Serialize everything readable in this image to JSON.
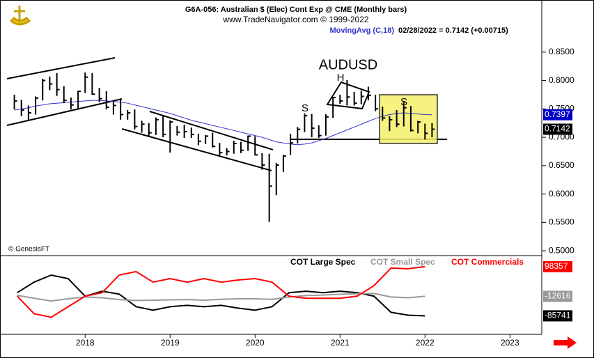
{
  "chart_data": [
    {
      "type": "ohlc",
      "title": "G6A-056:  Australian $ (Elec) Cont Exp @ CME  (Monthly bars)",
      "subtitle": "www.TradeNavigator.com © 1999-2022",
      "study_label": "MovingAvg (C,18)",
      "last_quote": "02/28/2022 = 0.7142 (+0.00715)",
      "annotations": [
        "AUDUSD",
        "H",
        "S",
        "S"
      ],
      "credit": "© GenesisFT",
      "color": "#000000",
      "x": [
        2017.167,
        2017.25,
        2017.333,
        2017.417,
        2017.5,
        2017.583,
        2017.667,
        2017.75,
        2017.833,
        2017.917,
        2018.0,
        2018.083,
        2018.167,
        2018.25,
        2018.333,
        2018.417,
        2018.5,
        2018.583,
        2018.667,
        2018.75,
        2018.833,
        2018.917,
        2019.0,
        2019.083,
        2019.167,
        2019.25,
        2019.333,
        2019.417,
        2019.5,
        2019.583,
        2019.667,
        2019.75,
        2019.833,
        2019.917,
        2020.0,
        2020.083,
        2020.167,
        2020.25,
        2020.333,
        2020.417,
        2020.5,
        2020.583,
        2020.667,
        2020.75,
        2020.833,
        2020.917,
        2021.0,
        2021.083,
        2021.167,
        2021.25,
        2021.333,
        2021.417,
        2021.5,
        2021.583,
        2021.667,
        2021.75,
        2021.833,
        2021.917,
        2022.0,
        2022.083
      ],
      "high": [
        0.775,
        0.766,
        0.756,
        0.772,
        0.803,
        0.807,
        0.813,
        0.79,
        0.77,
        0.782,
        0.814,
        0.813,
        0.787,
        0.781,
        0.762,
        0.768,
        0.748,
        0.749,
        0.729,
        0.725,
        0.735,
        0.737,
        0.73,
        0.72,
        0.722,
        0.717,
        0.706,
        0.704,
        0.708,
        0.69,
        0.681,
        0.694,
        0.692,
        0.703,
        0.702,
        0.672,
        0.671,
        0.655,
        0.669,
        0.706,
        0.718,
        0.742,
        0.741,
        0.721,
        0.741,
        0.771,
        0.775,
        0.801,
        0.78,
        0.782,
        0.789,
        0.775,
        0.754,
        0.737,
        0.748,
        0.764,
        0.755,
        0.729,
        0.724,
        0.725
      ],
      "low": [
        0.749,
        0.737,
        0.731,
        0.74,
        0.765,
        0.783,
        0.773,
        0.76,
        0.749,
        0.75,
        0.778,
        0.775,
        0.762,
        0.749,
        0.74,
        0.731,
        0.731,
        0.714,
        0.708,
        0.702,
        0.704,
        0.7,
        0.673,
        0.703,
        0.699,
        0.699,
        0.686,
        0.688,
        0.682,
        0.668,
        0.668,
        0.671,
        0.672,
        0.676,
        0.668,
        0.643,
        0.551,
        0.598,
        0.639,
        0.669,
        0.689,
        0.709,
        0.7,
        0.699,
        0.703,
        0.734,
        0.759,
        0.756,
        0.756,
        0.758,
        0.765,
        0.746,
        0.729,
        0.711,
        0.718,
        0.719,
        0.71,
        0.707,
        0.696,
        0.7
      ],
      "close": [
        0.764,
        0.748,
        0.743,
        0.769,
        0.8,
        0.794,
        0.784,
        0.765,
        0.757,
        0.781,
        0.806,
        0.776,
        0.768,
        0.753,
        0.756,
        0.74,
        0.743,
        0.719,
        0.723,
        0.708,
        0.731,
        0.705,
        0.727,
        0.709,
        0.71,
        0.705,
        0.693,
        0.702,
        0.684,
        0.673,
        0.675,
        0.689,
        0.677,
        0.702,
        0.669,
        0.651,
        0.614,
        0.651,
        0.667,
        0.69,
        0.714,
        0.738,
        0.716,
        0.703,
        0.736,
        0.77,
        0.764,
        0.771,
        0.76,
        0.772,
        0.774,
        0.75,
        0.734,
        0.731,
        0.723,
        0.752,
        0.712,
        0.727,
        0.707,
        0.7142
      ],
      "moving_average": {
        "color": "#3333cc",
        "values": [
          0.748,
          0.75,
          0.752,
          0.755,
          0.757,
          0.759,
          0.76,
          0.761,
          0.762,
          0.763,
          0.764,
          0.765,
          0.765,
          0.764,
          0.763,
          0.762,
          0.76,
          0.757,
          0.754,
          0.751,
          0.748,
          0.745,
          0.742,
          0.738,
          0.734,
          0.73,
          0.727,
          0.724,
          0.721,
          0.718,
          0.715,
          0.712,
          0.709,
          0.706,
          0.703,
          0.7,
          0.696,
          0.692,
          0.69,
          0.688,
          0.687,
          0.688,
          0.69,
          0.694,
          0.698,
          0.703,
          0.708,
          0.713,
          0.718,
          0.723,
          0.728,
          0.733,
          0.737,
          0.74,
          0.742,
          0.743,
          0.742,
          0.741,
          0.74,
          0.7397
        ]
      },
      "xlim": [
        2017.08,
        2023.35
      ],
      "xticks": [
        2018,
        2019,
        2020,
        2021,
        2022,
        2023
      ],
      "ylim": [
        0.494,
        0.932
      ],
      "yticks": [
        {
          "value": 0.5,
          "label": "0.5000"
        },
        {
          "value": 0.55,
          "label": "0.5500"
        },
        {
          "value": 0.6,
          "label": "0.6000"
        },
        {
          "value": 0.65,
          "label": "0.6500"
        },
        {
          "value": 0.7,
          "label": "0.7000"
        },
        {
          "value": 0.75,
          "label": "0.7500"
        },
        {
          "value": 0.8,
          "label": "0.8000"
        },
        {
          "value": 0.85,
          "label": "0.8500"
        }
      ]
    },
    {
      "type": "line",
      "x": [
        2017.2,
        2017.4,
        2017.6,
        2017.8,
        2018.0,
        2018.2,
        2018.4,
        2018.6,
        2018.8,
        2019.0,
        2019.2,
        2019.4,
        2019.6,
        2019.8,
        2020.0,
        2020.2,
        2020.4,
        2020.6,
        2020.8,
        2021.0,
        2021.2,
        2021.4,
        2021.6,
        2021.8,
        2022.0
      ],
      "xlim": [
        2017.08,
        2023.35
      ],
      "ylim": [
        -155000,
        132000
      ],
      "series": [
        {
          "name": "COT Large Spec",
          "color": "#000000",
          "values": [
            1047,
            40497,
            66797,
            53647,
            -12103,
            6307,
            -4213,
            -51563,
            -64713,
            -51563,
            -46303,
            -51563,
            -46303,
            -56823,
            -64713,
            -51563,
            1047,
            6307,
            1047,
            6307,
            1047,
            -12103,
            -72593,
            -83113,
            -85741
          ]
        },
        {
          "name": "COT Small Spec",
          "color": "#999999",
          "values": [
            -9000,
            -20000,
            -30000,
            -22000,
            -15000,
            -18000,
            -25000,
            -28000,
            -27000,
            -26000,
            -25000,
            -27000,
            -24000,
            -22000,
            -22000,
            -24000,
            -15000,
            -10000,
            -8000,
            -5000,
            -3000,
            -2000,
            -15000,
            -18000,
            -12616
          ]
        },
        {
          "name": "COT Commercials",
          "color": "#ff0000",
          "values": [
            -12103,
            -77843,
            -90997,
            -51563,
            -12103,
            1047,
            66797,
            79947,
            40497,
            53647,
            40497,
            53647,
            40497,
            48387,
            53647,
            40497,
            -12103,
            -20013,
            -20013,
            -20013,
            -12103,
            27347,
            93097,
            90467,
            98357
          ]
        }
      ]
    }
  ]
}
